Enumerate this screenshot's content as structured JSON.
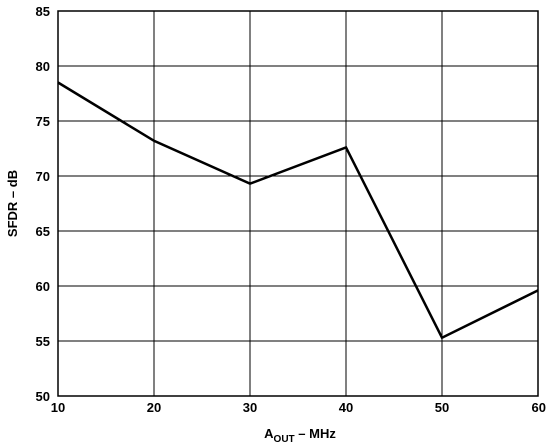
{
  "chart_data": {
    "type": "line",
    "x": [
      10,
      20,
      30,
      40,
      50,
      60
    ],
    "series": [
      {
        "values": [
          78.5,
          73.2,
          69.3,
          72.6,
          55.3,
          59.6
        ]
      }
    ],
    "xlabel_parts": {
      "main": "A",
      "sub": "OUT",
      "rest": " – MHz"
    },
    "ylabel": "SFDR – dB",
    "xlim": [
      10,
      60
    ],
    "ylim": [
      50,
      85
    ],
    "xticks": [
      "10",
      "20",
      "30",
      "40",
      "50",
      "60"
    ],
    "yticks": [
      "50",
      "55",
      "60",
      "65",
      "70",
      "75",
      "80",
      "85"
    ],
    "grid": true,
    "line_color": "#000000"
  }
}
